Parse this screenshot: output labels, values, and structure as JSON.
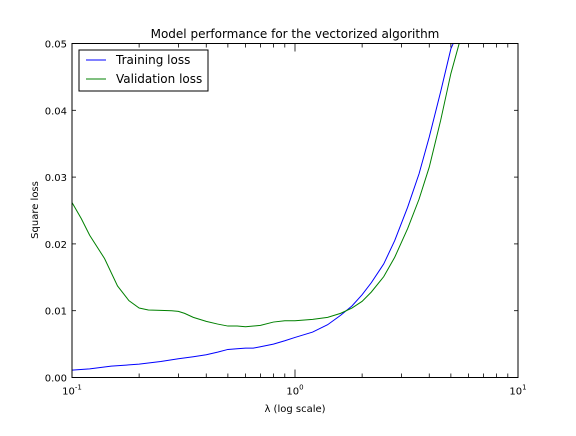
{
  "chart_data": {
    "type": "line",
    "title": "Model performance for the vectorized algorithm",
    "xlabel": "λ (log scale)",
    "ylabel": "Square loss",
    "xscale": "log",
    "xlim": [
      0.1,
      10
    ],
    "ylim": [
      0.0,
      0.05
    ],
    "x_ticks": [
      0.1,
      1,
      10
    ],
    "x_tick_labels": [
      {
        "base": "10",
        "exp": "-1"
      },
      {
        "base": "10",
        "exp": "0"
      },
      {
        "base": "10",
        "exp": "1"
      }
    ],
    "y_ticks": [
      0.0,
      0.01,
      0.02,
      0.03,
      0.04,
      0.05
    ],
    "y_tick_labels": [
      "0.00",
      "0.01",
      "0.02",
      "0.03",
      "0.04",
      "0.05"
    ],
    "grid": false,
    "legend": {
      "position": "top-left",
      "framed": true
    },
    "series": [
      {
        "name": "Training loss",
        "color": "#0000ff",
        "x": [
          0.1,
          0.12,
          0.15,
          0.2,
          0.25,
          0.3,
          0.35,
          0.4,
          0.45,
          0.5,
          0.55,
          0.6,
          0.65,
          0.7,
          0.8,
          0.9,
          1.0,
          1.2,
          1.4,
          1.6,
          1.8,
          2.0,
          2.2,
          2.5,
          2.8,
          3.2,
          3.6,
          4.0,
          4.5,
          5.0,
          5.2
        ],
        "y": [
          0.0011,
          0.0013,
          0.0017,
          0.002,
          0.0024,
          0.0028,
          0.0031,
          0.0034,
          0.0038,
          0.0042,
          0.0043,
          0.0044,
          0.0044,
          0.0046,
          0.005,
          0.0055,
          0.006,
          0.0068,
          0.0079,
          0.0093,
          0.0107,
          0.0124,
          0.0142,
          0.017,
          0.0205,
          0.0255,
          0.0305,
          0.036,
          0.0428,
          0.0492,
          0.0505
        ]
      },
      {
        "name": "Validation loss",
        "color": "#008000",
        "x": [
          0.1,
          0.11,
          0.12,
          0.14,
          0.16,
          0.18,
          0.2,
          0.22,
          0.25,
          0.28,
          0.3,
          0.32,
          0.35,
          0.4,
          0.45,
          0.5,
          0.55,
          0.6,
          0.7,
          0.8,
          0.9,
          1.0,
          1.2,
          1.4,
          1.6,
          1.8,
          2.0,
          2.2,
          2.5,
          2.8,
          3.2,
          3.6,
          4.0,
          4.5,
          5.0,
          5.5
        ],
        "y": [
          0.0262,
          0.0238,
          0.0213,
          0.0178,
          0.0137,
          0.0115,
          0.0104,
          0.0101,
          0.01005,
          0.01,
          0.0099,
          0.0096,
          0.009,
          0.0084,
          0.008,
          0.0077,
          0.0077,
          0.0076,
          0.0078,
          0.0083,
          0.0085,
          0.0085,
          0.0087,
          0.009,
          0.0096,
          0.0104,
          0.0114,
          0.0128,
          0.0151,
          0.018,
          0.0223,
          0.0267,
          0.0315,
          0.0385,
          0.0455,
          0.0505
        ]
      }
    ]
  }
}
